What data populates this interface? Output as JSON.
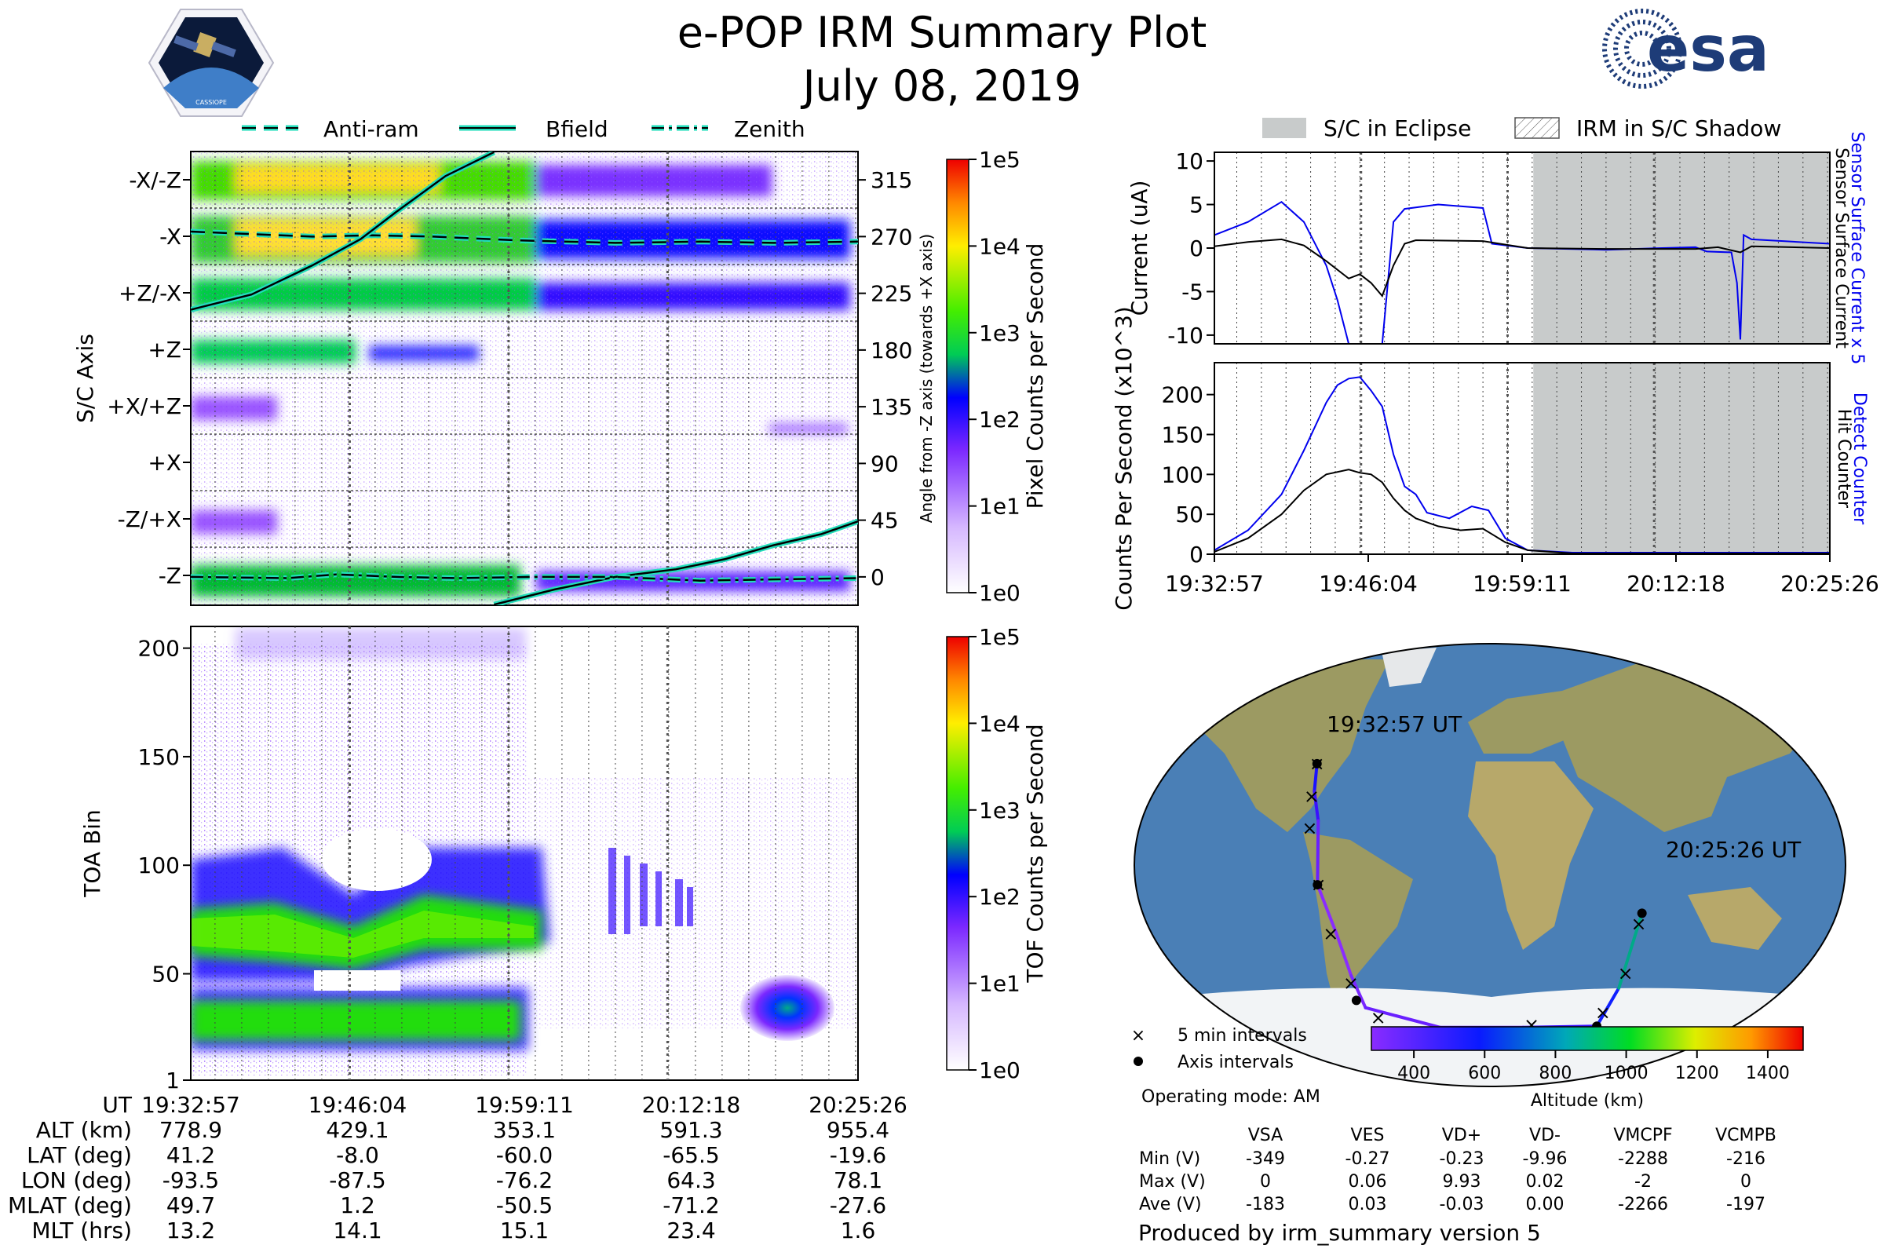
{
  "title": "e-POP IRM Summary Plot",
  "date": "July 08, 2019",
  "logos": {
    "mission": "CASSIOPE",
    "agency": "esa"
  },
  "colors": {
    "anti_ram": "#000000",
    "bfield": "#000000",
    "zenith": "#000000",
    "line_halo": "#22ddbb",
    "current_scaled": "#0000ee",
    "current": "#000000",
    "detect": "#0000ee",
    "hit": "#000000",
    "eclipse": "#c8cbcb",
    "ocean": "#4a7fb6",
    "land": "#9c9a62",
    "ice": "#f2f4f6"
  },
  "colorbar_ticks": [
    "400",
    "600",
    "800",
    "1000",
    "1200",
    "1400"
  ],
  "legends": {
    "angle_panel": [
      "Anti-ram",
      "Bfield",
      "Zenith"
    ],
    "current_panel": [
      "S/C in Eclipse",
      "IRM in S/C Shadow"
    ],
    "map": [
      "5 min intervals",
      "Axis intervals"
    ]
  },
  "chart_data": [
    {
      "id": "sc-axis-spectrogram",
      "type": "heatmap",
      "ylabel": "S/C Axis",
      "y2label": "Angle from -Z axis (towards +X axis)",
      "yticklabels": [
        "-X/-Z",
        "-X",
        "+Z/-X",
        "+Z",
        "+X/+Z",
        "+X",
        "-Z/+X",
        "-Z"
      ],
      "y2ticks": [
        315,
        270,
        225,
        180,
        135,
        90,
        45,
        0
      ],
      "y2lim": [
        -22.5,
        337.5
      ],
      "colorbar": {
        "label": "Pixel Counts per Second",
        "scale": "log",
        "ticks": [
          "1e0",
          "1e1",
          "1e2",
          "1e3",
          "1e4",
          "1e5"
        ]
      },
      "xlim_minutes": [
        0,
        55
      ],
      "lines": [
        {
          "name": "Anti-ram",
          "style": "dashed",
          "points": [
            [
              0,
              274
            ],
            [
              5,
              272
            ],
            [
              10,
              270
            ],
            [
              15,
              271
            ],
            [
              20,
              270
            ],
            [
              27,
              267
            ],
            [
              35,
              265
            ],
            [
              42,
              266
            ],
            [
              48,
              265
            ],
            [
              55,
              266
            ]
          ]
        },
        {
          "name": "Bfield",
          "style": "solid",
          "points": [
            [
              0,
              212
            ],
            [
              5,
              224
            ],
            [
              10,
              247
            ],
            [
              14,
              268
            ],
            [
              17,
              290
            ],
            [
              21,
              318
            ],
            [
              25,
              337
            ]
          ]
        },
        {
          "name": "Bfield",
          "style": "solid",
          "points": [
            [
              25,
              -22
            ],
            [
              30,
              -10
            ],
            [
              35,
              0
            ],
            [
              40,
              6
            ],
            [
              44,
              14
            ],
            [
              48,
              25
            ],
            [
              52,
              34
            ],
            [
              55,
              44
            ]
          ]
        },
        {
          "name": "Zenith",
          "style": "dash-dot",
          "points": [
            [
              0,
              0
            ],
            [
              8,
              -1
            ],
            [
              12,
              2
            ],
            [
              17,
              0
            ],
            [
              22,
              -1
            ],
            [
              28,
              0
            ],
            [
              35,
              0
            ],
            [
              42,
              -3
            ],
            [
              48,
              -2
            ],
            [
              55,
              -1
            ]
          ]
        }
      ]
    },
    {
      "id": "toa-spectrogram",
      "type": "heatmap",
      "ylabel": "TOA Bin",
      "yticks": [
        1,
        50,
        100,
        150,
        200
      ],
      "ylim": [
        1,
        210
      ],
      "colorbar": {
        "label": "TOF Counts per Second",
        "scale": "log",
        "ticks": [
          "1e0",
          "1e1",
          "1e2",
          "1e3",
          "1e4",
          "1e5"
        ]
      },
      "xlim_minutes": [
        0,
        55
      ],
      "bands": [
        {
          "name": "upper",
          "center_bin": 70,
          "time_range_minutes": [
            0,
            28
          ]
        },
        {
          "name": "lower",
          "center_bin": 25,
          "time_range_minutes": [
            0,
            25
          ]
        },
        {
          "name": "late blob",
          "center_bin": 32,
          "time_range_minutes": [
            44,
            52
          ]
        }
      ]
    },
    {
      "id": "current-panel",
      "type": "line",
      "ylabel": "Current (uA)",
      "y2label_lines": [
        "Sensor Surface Current x 5",
        "Sensor Surface Current"
      ],
      "yticks": [
        -10,
        -5,
        0,
        5,
        10
      ],
      "ylim": [
        -11,
        11
      ],
      "xlim_minutes": [
        0,
        55
      ],
      "eclipse_range_minutes": [
        28.5,
        55
      ],
      "series": [
        {
          "name": "Sensor Surface Current x 5",
          "points": [
            [
              0,
              1.5
            ],
            [
              3,
              3
            ],
            [
              6,
              5.3
            ],
            [
              8,
              3
            ],
            [
              10,
              -2
            ],
            [
              11,
              -6
            ],
            [
              12,
              -11
            ]
          ]
        },
        {
          "name": "Sensor Surface Current x 5",
          "points": [
            [
              15,
              -11
            ],
            [
              16,
              3
            ],
            [
              17,
              4.5
            ],
            [
              20,
              5
            ],
            [
              24,
              4.6
            ],
            [
              24.8,
              0.5
            ],
            [
              28,
              0
            ],
            [
              35,
              -0.2
            ],
            [
              40,
              0
            ],
            [
              43,
              0.1
            ],
            [
              44,
              -0.4
            ],
            [
              46.2,
              -0.5
            ],
            [
              46.7,
              -4
            ],
            [
              47,
              -10.5
            ],
            [
              47.3,
              1.5
            ],
            [
              48,
              1
            ],
            [
              55,
              0.5
            ]
          ]
        },
        {
          "name": "Sensor Surface Current",
          "points": [
            [
              0,
              0.2
            ],
            [
              3,
              0.7
            ],
            [
              6,
              1
            ],
            [
              8,
              0.3
            ],
            [
              10,
              -1.5
            ],
            [
              12,
              -3.5
            ],
            [
              13,
              -3
            ],
            [
              14,
              -4
            ],
            [
              15,
              -5.5
            ],
            [
              16,
              -2
            ],
            [
              17,
              0.5
            ],
            [
              18,
              0.9
            ],
            [
              24,
              0.8
            ],
            [
              28,
              0
            ],
            [
              35,
              -0.1
            ],
            [
              43,
              -0.1
            ],
            [
              45,
              0.1
            ],
            [
              47,
              -0.5
            ],
            [
              48,
              0.2
            ],
            [
              55,
              0
            ]
          ]
        }
      ],
      "eclipse_shading": true
    },
    {
      "id": "counts-panel",
      "type": "line",
      "ylabel": "Counts Per Second (x10^3)",
      "y2label_lines": [
        "Detect Counter",
        "Hit Counter"
      ],
      "yticks": [
        0,
        50,
        100,
        150,
        200
      ],
      "ylim": [
        0,
        240
      ],
      "xlim_minutes": [
        0,
        55
      ],
      "xticklabels": [
        "19:32:57",
        "19:46:04",
        "19:59:11",
        "20:12:18",
        "20:25:26"
      ],
      "series": [
        {
          "name": "Detect Counter",
          "points": [
            [
              0,
              5
            ],
            [
              3,
              30
            ],
            [
              6,
              75
            ],
            [
              8,
              130
            ],
            [
              10,
              190
            ],
            [
              11,
              212
            ],
            [
              12,
              220
            ],
            [
              13,
              222
            ],
            [
              14,
              205
            ],
            [
              15,
              185
            ],
            [
              16,
              125
            ],
            [
              17,
              85
            ],
            [
              18,
              75
            ],
            [
              19,
              52
            ],
            [
              21,
              45
            ],
            [
              23,
              60
            ],
            [
              24.5,
              55
            ],
            [
              26,
              20
            ],
            [
              28,
              5
            ],
            [
              32,
              2
            ],
            [
              55,
              2
            ]
          ]
        },
        {
          "name": "Hit Counter",
          "points": [
            [
              0,
              3
            ],
            [
              3,
              20
            ],
            [
              6,
              50
            ],
            [
              8,
              80
            ],
            [
              10,
              100
            ],
            [
              12,
              106
            ],
            [
              13,
              102
            ],
            [
              14,
              100
            ],
            [
              15,
              90
            ],
            [
              16,
              70
            ],
            [
              17,
              55
            ],
            [
              18,
              45
            ],
            [
              20,
              35
            ],
            [
              22,
              30
            ],
            [
              24,
              32
            ],
            [
              26,
              15
            ],
            [
              28,
              5
            ],
            [
              32,
              1
            ],
            [
              55,
              1
            ]
          ]
        }
      ],
      "eclipse_shading": true
    }
  ],
  "map_panel": {
    "labels": {
      "start": "19:32:57 UT",
      "end": "20:25:26 UT"
    },
    "colorbar_label": "Altitude (km)",
    "operating_mode": "Operating mode: AM",
    "credit": "Produced by irm_summary version 5",
    "track": [
      [
        -93.5,
        41.2
      ],
      [
        -92,
        30
      ],
      [
        -88,
        18
      ],
      [
        -87.5,
        -8
      ],
      [
        -80,
        -28
      ],
      [
        -76,
        -45
      ],
      [
        -72,
        -58
      ],
      [
        -30,
        -66
      ],
      [
        20,
        -66
      ],
      [
        64.3,
        -65.5
      ],
      [
        72,
        -50
      ],
      [
        78.1,
        -19.6
      ]
    ],
    "five_min_marks": [
      [
        -93.5,
        41.2
      ],
      [
        -93,
        28
      ],
      [
        -92,
        15
      ],
      [
        -87,
        -8
      ],
      [
        -83,
        -28
      ],
      [
        -77,
        -48
      ],
      [
        -66,
        -62
      ],
      [
        25,
        -65
      ],
      [
        66,
        -60
      ],
      [
        74,
        -44
      ],
      [
        77,
        -24
      ]
    ],
    "axis_marks": [
      [
        -93.5,
        41.2
      ],
      [
        -87.5,
        -8
      ],
      [
        -76.2,
        -55
      ],
      [
        64.3,
        -65.5
      ],
      [
        78.1,
        -19.6
      ]
    ]
  },
  "bottom_table": {
    "rows": [
      {
        "label": "UT",
        "values": [
          "19:32:57",
          "19:46:04",
          "19:59:11",
          "20:12:18",
          "20:25:26"
        ]
      },
      {
        "label": "ALT (km)",
        "values": [
          "778.9",
          "429.1",
          "353.1",
          "591.3",
          "955.4"
        ]
      },
      {
        "label": "LAT (deg)",
        "values": [
          "41.2",
          "-8.0",
          "-60.0",
          "-65.5",
          "-19.6"
        ]
      },
      {
        "label": "LON (deg)",
        "values": [
          "-93.5",
          "-87.5",
          "-76.2",
          "64.3",
          "78.1"
        ]
      },
      {
        "label": "MLAT (deg)",
        "values": [
          "49.7",
          "1.2",
          "-50.5",
          "-71.2",
          "-27.6"
        ]
      },
      {
        "label": "MLT (hrs)",
        "values": [
          "13.2",
          "14.1",
          "15.1",
          "23.4",
          "1.6"
        ]
      }
    ]
  },
  "voltage_table": {
    "headers": [
      "VSA",
      "VES",
      "VD+",
      "VD-",
      "VMCPF",
      "VCMPB"
    ],
    "rows": [
      {
        "label": "Min (V)",
        "values": [
          "-349",
          "-0.27",
          "-0.23",
          "-9.96",
          "-2288",
          "-216"
        ]
      },
      {
        "label": "Max (V)",
        "values": [
          "0",
          "0.06",
          "9.93",
          "0.02",
          "-2",
          "0"
        ]
      },
      {
        "label": "Ave (V)",
        "values": [
          "-183",
          "0.03",
          "-0.03",
          "0.00",
          "-2266",
          "-197"
        ]
      }
    ]
  }
}
